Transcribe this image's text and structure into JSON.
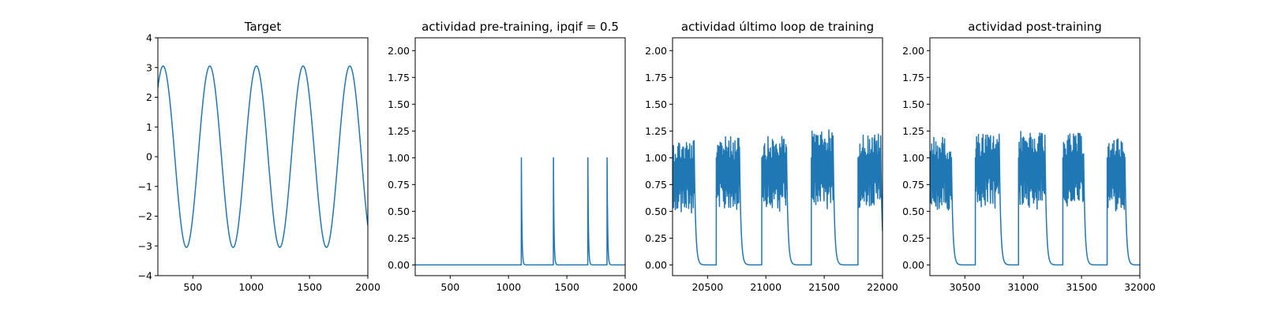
{
  "chart_data": [
    {
      "type": "line",
      "title": "Target",
      "xlim": [
        200,
        2000
      ],
      "ylim": [
        -4,
        4
      ],
      "xticks": [
        500,
        1000,
        1500,
        2000
      ],
      "yticks": [
        -4,
        -3,
        -2,
        -1,
        0,
        1,
        2,
        3,
        4
      ],
      "ytick_labels": [
        "−4",
        "−3",
        "−2",
        "−1",
        "0",
        "1",
        "2",
        "3",
        "4"
      ],
      "series": [
        {
          "function": "sine",
          "amplitude": 3.05,
          "period": 400,
          "peaks_at": [
            245,
            645,
            1045,
            1445,
            1845
          ]
        }
      ]
    },
    {
      "type": "line",
      "title": "actividad pre-training, ipqif = 0.5",
      "xlim": [
        200,
        2000
      ],
      "ylim": [
        -0.1,
        2.12
      ],
      "xticks": [
        500,
        1000,
        1500,
        2000
      ],
      "yticks": [
        0.0,
        0.25,
        0.5,
        0.75,
        1.0,
        1.25,
        1.5,
        1.75,
        2.0
      ],
      "ytick_labels": [
        "0.00",
        "0.25",
        "0.50",
        "0.75",
        "1.00",
        "1.25",
        "1.50",
        "1.75",
        "2.00"
      ],
      "series": [
        {
          "spikes": [
            [
              1110,
              1.0
            ],
            [
              1385,
              1.0
            ],
            [
              1680,
              1.0
            ],
            [
              1845,
              1.0
            ]
          ]
        }
      ]
    },
    {
      "type": "line",
      "title": "actividad último loop de training",
      "xlim": [
        20200,
        22000
      ],
      "ylim": [
        -0.1,
        2.12
      ],
      "xticks": [
        20500,
        21000,
        21500,
        22000
      ],
      "yticks": [
        0.0,
        0.25,
        0.5,
        0.75,
        1.0,
        1.25,
        1.5,
        1.75,
        2.0
      ],
      "ytick_labels": [
        "0.00",
        "0.25",
        "0.50",
        "0.75",
        "1.00",
        "1.25",
        "1.50",
        "1.75",
        "2.00"
      ],
      "series": [
        {
          "bursts": [
            {
              "start": 20200,
              "end": 20385,
              "peak": 1.18
            },
            {
              "start": 20575,
              "end": 20775,
              "peak": 1.2
            },
            {
              "start": 20965,
              "end": 21185,
              "peak": 1.2
            },
            {
              "start": 21390,
              "end": 21580,
              "peak": 1.27
            },
            {
              "start": 21790,
              "end": 21990,
              "peak": 1.23
            }
          ]
        }
      ]
    },
    {
      "type": "line",
      "title": "actividad post-training",
      "xlim": [
        30200,
        32000
      ],
      "ylim": [
        -0.1,
        2.12
      ],
      "xticks": [
        30500,
        31000,
        31500,
        32000
      ],
      "yticks": [
        0.0,
        0.25,
        0.5,
        0.75,
        1.0,
        1.25,
        1.5,
        1.75,
        2.0
      ],
      "ytick_labels": [
        "0.00",
        "0.25",
        "0.50",
        "0.75",
        "1.00",
        "1.25",
        "1.50",
        "1.75",
        "2.00"
      ],
      "series": [
        {
          "bursts": [
            {
              "start": 30200,
              "end": 30385,
              "peak": 1.2
            },
            {
              "start": 30590,
              "end": 30800,
              "peak": 1.23
            },
            {
              "start": 30960,
              "end": 31190,
              "peak": 1.26
            },
            {
              "start": 31340,
              "end": 31520,
              "peak": 1.23
            },
            {
              "start": 31720,
              "end": 31875,
              "peak": 1.2
            }
          ]
        }
      ]
    }
  ]
}
